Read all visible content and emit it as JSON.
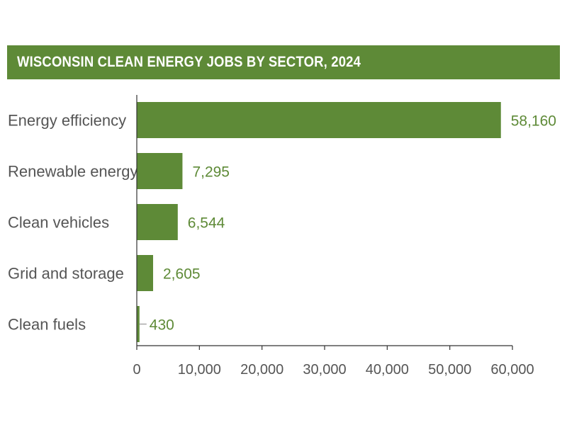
{
  "colors": {
    "bar": "#5e8a37",
    "banner": "#5e8a37",
    "value_text": "#5e8a37",
    "label_text": "#555555",
    "axis": "#333333"
  },
  "chart_data": {
    "type": "bar",
    "orientation": "horizontal",
    "title": "WISCONSIN CLEAN ENERGY JOBS BY SECTOR, 2024",
    "xlabel": "",
    "ylabel": "",
    "categories": [
      "Energy efficiency",
      "Renewable energy",
      "Clean vehicles",
      "Grid and storage",
      "Clean fuels"
    ],
    "values": [
      58160,
      7295,
      6544,
      2605,
      430
    ],
    "value_labels": [
      "58,160",
      "7,295",
      "6,544",
      "2,605",
      "430"
    ],
    "xlim": [
      0,
      60000
    ],
    "ticks": [
      0,
      10000,
      20000,
      30000,
      40000,
      50000,
      60000
    ],
    "tick_labels": [
      "0",
      "10,000",
      "20,000",
      "30,000",
      "40,000",
      "50,000",
      "60,000"
    ],
    "grid": false,
    "legend": "none"
  }
}
